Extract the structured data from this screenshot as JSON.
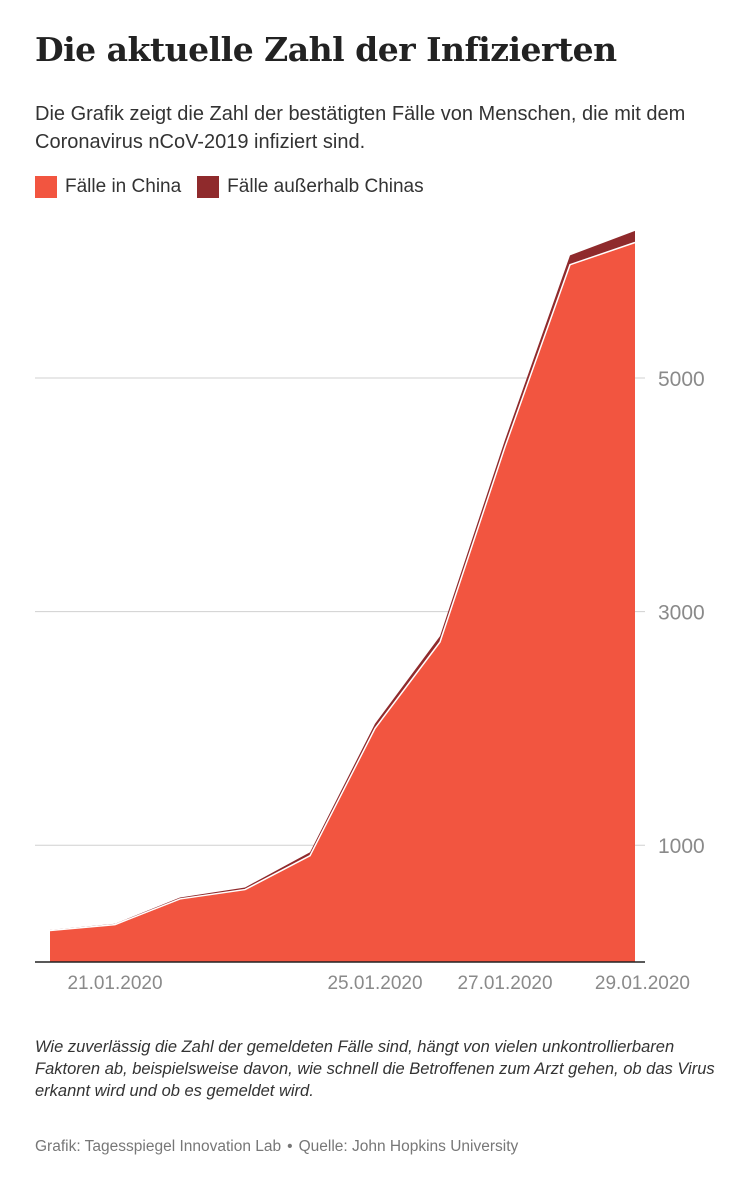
{
  "title": "Die aktuelle Zahl der Infizierten",
  "subtitle": "Die Grafik zeigt die Zahl der bestätigten Fälle von Menschen, die mit dem Coronavirus nCoV-2019 infiziert sind.",
  "note": "Wie zuverlässig die Zahl der gemeldeten Fälle sind, hängt von vielen unkontrollierbaren Faktoren ab, beispielsweise davon, wie schnell die Betroffenen zum Arzt gehen, ob das Virus erkannt wird und ob es gemeldet wird.",
  "source": {
    "credit": "Grafik: Tagesspiegel Innovation Lab",
    "separator": "•",
    "origin": "Quelle: John Hopkins University"
  },
  "colors": {
    "china": "#f25540",
    "outside": "#8f2a2c",
    "grid": "#d0d0d0",
    "axis": "#222222",
    "tick_label": "#8a8a8a"
  },
  "chart_data": {
    "type": "area",
    "stacked": true,
    "x": [
      "20.01.2020",
      "21.01.2020",
      "22.01.2020",
      "23.01.2020",
      "24.01.2020",
      "25.01.2020",
      "26.01.2020",
      "27.01.2020",
      "28.01.2020",
      "29.01.2020"
    ],
    "x_tick_labels": [
      "21.01.2020",
      "25.01.2020",
      "27.01.2020",
      "29.01.2020"
    ],
    "series": [
      {
        "name": "Fälle in China",
        "values": [
          270,
          320,
          540,
          620,
          910,
          2000,
          2740,
          4410,
          5970,
          6160
        ]
      },
      {
        "name": "Fälle außerhalb Chinas",
        "values": [
          5,
          8,
          12,
          18,
          30,
          40,
          50,
          60,
          80,
          100
        ]
      }
    ],
    "y_ticks": [
      1000,
      3000,
      5000
    ],
    "ylim": [
      0,
      6300
    ],
    "y_axis_side": "right",
    "grid": "horizontal",
    "legend": "top-left"
  }
}
